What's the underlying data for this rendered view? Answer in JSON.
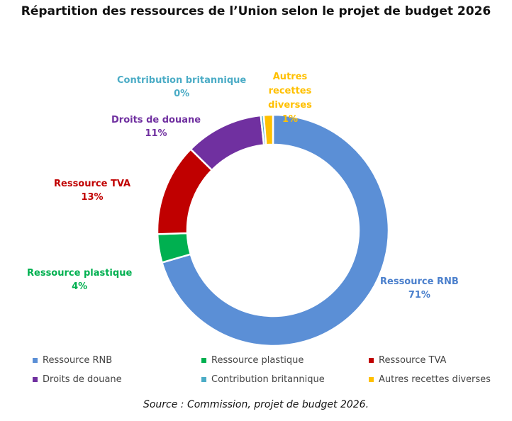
{
  "title": "Répartition des ressources de l’Union selon le projet de budget 2026",
  "source": "Source : Commission, projet de budget 2026.",
  "chart_data": {
    "type": "pie",
    "subtype": "donut",
    "title": "Répartition des ressources de l’Union selon le projet de budget 2026",
    "categories": [
      "Ressource RNB",
      "Ressource plastique",
      "Ressource TVA",
      "Droits de douane",
      "Contribution britannique",
      "Autres recettes diverses"
    ],
    "values": [
      71,
      4,
      13,
      11,
      0.4,
      1.3
    ],
    "value_labels": [
      "71%",
      "4%",
      "13%",
      "11%",
      "0%",
      "1%"
    ],
    "colors": [
      "#5b8fd6",
      "#00b050",
      "#c00000",
      "#7030a0",
      "#4bacc6",
      "#ffc000"
    ],
    "legend_position": "bottom"
  }
}
